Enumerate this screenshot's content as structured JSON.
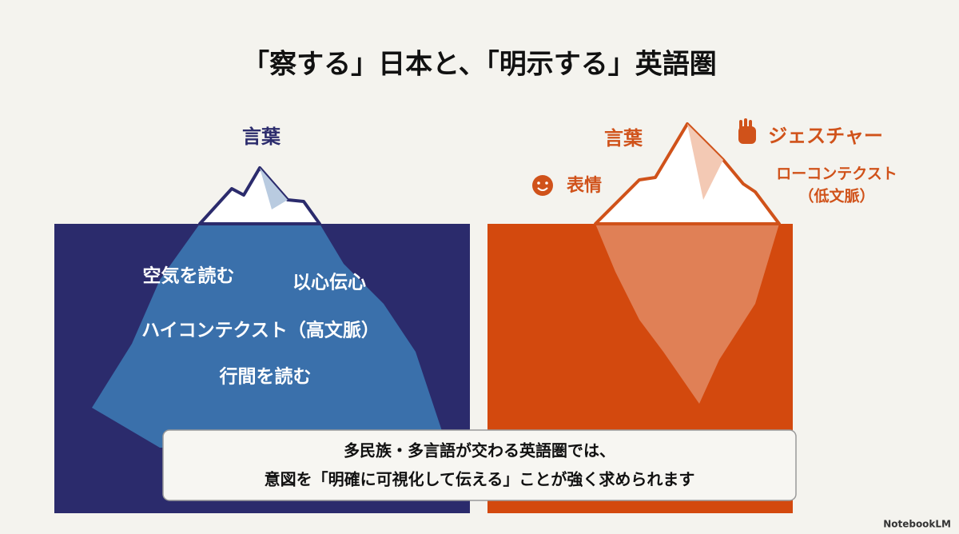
{
  "title": "「察する」日本と、「明示する」英語圏",
  "left": {
    "tip_label": "言葉",
    "hidden": [
      "空気を読む",
      "以心伝心",
      "ハイコンテクスト（高文脈）",
      "行間を読む"
    ]
  },
  "right": {
    "tip_label": "言葉",
    "gesture": "ジェスチャー",
    "expression": "表情",
    "context": [
      "ローコンテクスト",
      "（低文脈）"
    ]
  },
  "callout": [
    "多民族・多言語が交わる英語圏では、",
    "意図を「明確に可視化して伝える」ことが強く求められます"
  ],
  "watermark": "NotebookLM"
}
